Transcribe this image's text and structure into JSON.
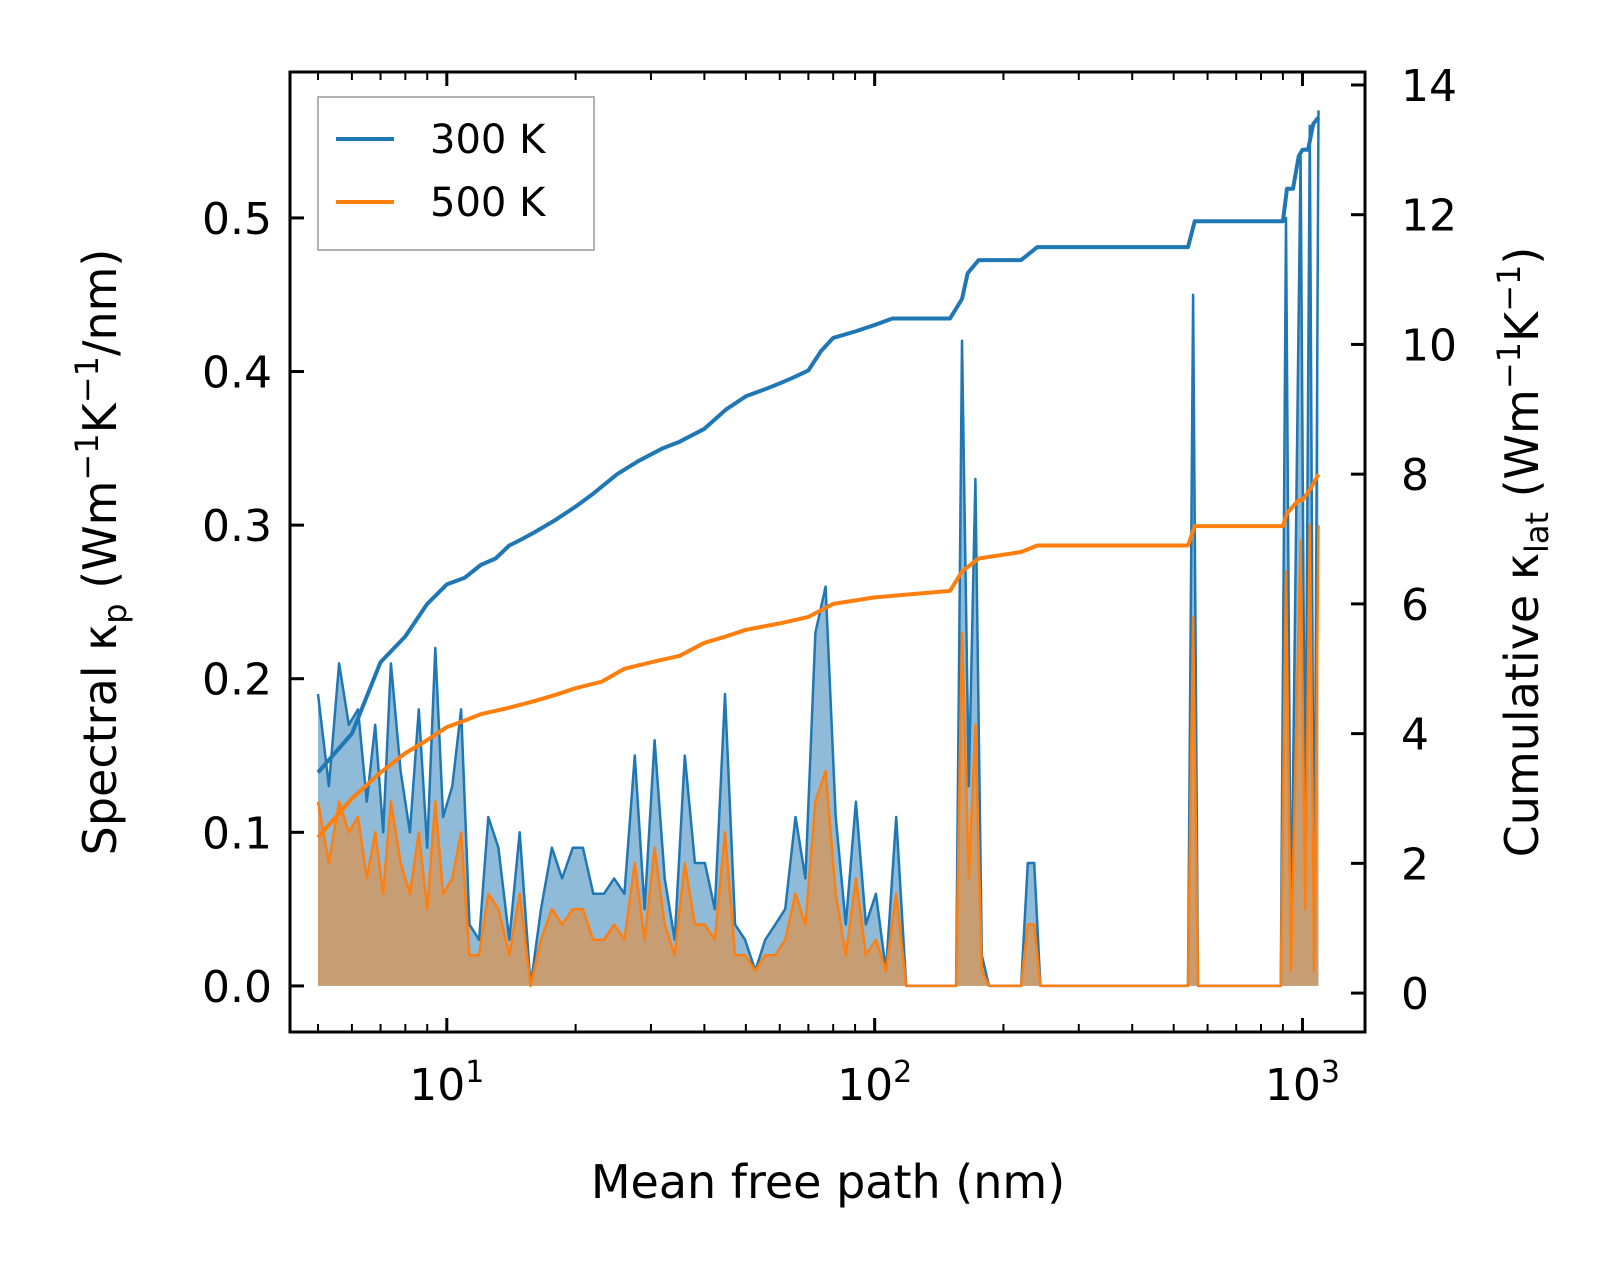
{
  "chart_data": {
    "type": "line",
    "xscale": "log",
    "xlabel": "Mean free path (nm)",
    "ylabel_left": {
      "prefix": "Spectral κ",
      "sub": "p",
      "unit_open": " (Wm",
      "sup1": "−1",
      "mid": "K",
      "sup2": "−1",
      "unit_close": "/nm)"
    },
    "ylabel_right": {
      "prefix": "Cumulative κ",
      "sub": "lat",
      "unit_open": " (Wm",
      "sup1": "−1",
      "mid": "K",
      "sup2": "−1",
      "unit_close": ")"
    },
    "xlim": [
      4.3,
      1400
    ],
    "ylim_left": [
      -0.03,
      0.595
    ],
    "ylim_right": [
      -0.6,
      14.2
    ],
    "xticks": [
      {
        "value": 10,
        "base": "10",
        "exp": "1"
      },
      {
        "value": 100,
        "base": "10",
        "exp": "2"
      },
      {
        "value": 1000,
        "base": "10",
        "exp": "3"
      }
    ],
    "yticks_left": [
      {
        "value": 0.0,
        "label": "0.0"
      },
      {
        "value": 0.1,
        "label": "0.1"
      },
      {
        "value": 0.2,
        "label": "0.2"
      },
      {
        "value": 0.3,
        "label": "0.3"
      },
      {
        "value": 0.4,
        "label": "0.4"
      },
      {
        "value": 0.5,
        "label": "0.5"
      }
    ],
    "yticks_right": [
      {
        "value": 0,
        "label": "0"
      },
      {
        "value": 2,
        "label": "2"
      },
      {
        "value": 4,
        "label": "4"
      },
      {
        "value": 6,
        "label": "6"
      },
      {
        "value": 8,
        "label": "8"
      },
      {
        "value": 10,
        "label": "10"
      },
      {
        "value": 12,
        "label": "12"
      },
      {
        "value": 14,
        "label": "14"
      }
    ],
    "legend": {
      "position": "upper-left",
      "entries": [
        "300 K",
        "500 K"
      ]
    },
    "series": [
      {
        "name": "300 K",
        "color": "#1f77b4",
        "spectral": {
          "x": [
            5,
            5.3,
            5.6,
            5.9,
            6.2,
            6.5,
            6.8,
            7.1,
            7.4,
            7.8,
            8.2,
            8.6,
            9.0,
            9.4,
            9.8,
            10.3,
            10.8,
            11.3,
            11.9,
            12.5,
            13.2,
            14.0,
            14.8,
            15.7,
            16.6,
            17.6,
            18.6,
            19.7,
            20.8,
            22.0,
            23.3,
            24.6,
            26.0,
            27.5,
            29.0,
            30.6,
            32.3,
            34.1,
            36.0,
            38.0,
            40.1,
            42.3,
            44.7,
            47.2,
            49.8,
            52.6,
            55.5,
            58.6,
            61.8,
            65.3,
            68.9,
            72.7,
            76.8,
            81.1,
            85.6,
            90.4,
            95.4,
            100.7,
            106.3,
            112.3,
            118.5,
            155,
            160,
            166,
            172,
            178,
            185,
            220,
            228,
            236,
            244,
            540,
            555,
            570,
            890,
            915,
            940,
            965,
            990,
            1015,
            1040,
            1065,
            1090
          ],
          "y": [
            0.19,
            0.13,
            0.21,
            0.17,
            0.18,
            0.12,
            0.17,
            0.1,
            0.21,
            0.14,
            0.1,
            0.18,
            0.09,
            0.22,
            0.11,
            0.13,
            0.18,
            0.04,
            0.03,
            0.11,
            0.09,
            0.03,
            0.1,
            0.0,
            0.05,
            0.09,
            0.07,
            0.09,
            0.09,
            0.06,
            0.06,
            0.07,
            0.06,
            0.15,
            0.05,
            0.16,
            0.07,
            0.03,
            0.15,
            0.08,
            0.08,
            0.05,
            0.19,
            0.04,
            0.03,
            0.01,
            0.03,
            0.04,
            0.05,
            0.11,
            0.07,
            0.23,
            0.26,
            0.11,
            0.04,
            0.12,
            0.04,
            0.06,
            0.01,
            0.11,
            0.0,
            0.0,
            0.42,
            0.13,
            0.33,
            0.02,
            0.0,
            0.0,
            0.08,
            0.08,
            0.0,
            0.0,
            0.45,
            0.0,
            0.0,
            0.5,
            0.02,
            0.29,
            0.54,
            0.09,
            0.56,
            0.01,
            0.57
          ]
        },
        "cumulative": {
          "x": [
            5,
            6,
            7,
            8,
            9,
            10,
            11,
            12,
            13,
            14,
            15,
            16,
            18,
            20,
            22,
            25,
            28,
            32,
            35,
            40,
            45,
            50,
            55,
            60,
            65,
            70,
            75,
            80,
            90,
            100,
            110,
            120,
            150,
            160,
            165,
            175,
            185,
            220,
            240,
            260,
            300,
            400,
            540,
            560,
            700,
            900,
            920,
            950,
            980,
            1000,
            1030,
            1060,
            1090
          ],
          "y": [
            3.4,
            4.0,
            5.1,
            5.5,
            6.0,
            6.3,
            6.4,
            6.6,
            6.7,
            6.9,
            7.0,
            7.1,
            7.3,
            7.5,
            7.7,
            8.0,
            8.2,
            8.4,
            8.5,
            8.7,
            9.0,
            9.2,
            9.3,
            9.4,
            9.5,
            9.6,
            9.9,
            10.1,
            10.2,
            10.3,
            10.4,
            10.4,
            10.4,
            10.7,
            11.1,
            11.3,
            11.3,
            11.3,
            11.5,
            11.5,
            11.5,
            11.5,
            11.5,
            11.9,
            11.9,
            11.9,
            12.4,
            12.4,
            12.9,
            13.0,
            13.0,
            13.4,
            13.5
          ]
        }
      },
      {
        "name": "500 K",
        "color": "#ff7f0e",
        "spectral": {
          "x": [
            5,
            5.3,
            5.6,
            5.9,
            6.2,
            6.5,
            6.8,
            7.1,
            7.4,
            7.8,
            8.2,
            8.6,
            9.0,
            9.4,
            9.8,
            10.3,
            10.8,
            11.3,
            11.9,
            12.5,
            13.2,
            14.0,
            14.8,
            15.7,
            16.6,
            17.6,
            18.6,
            19.7,
            20.8,
            22.0,
            23.3,
            24.6,
            26.0,
            27.5,
            29.0,
            30.6,
            32.3,
            34.1,
            36.0,
            38.0,
            40.1,
            42.3,
            44.7,
            47.2,
            49.8,
            52.6,
            55.5,
            58.6,
            61.8,
            65.3,
            68.9,
            72.7,
            76.8,
            81.1,
            85.6,
            90.4,
            95.4,
            100.7,
            106.3,
            112.3,
            118.5,
            155,
            160,
            166,
            172,
            178,
            185,
            220,
            228,
            236,
            244,
            540,
            555,
            570,
            890,
            915,
            940,
            965,
            990,
            1015,
            1040,
            1065,
            1090
          ],
          "y": [
            0.12,
            0.08,
            0.12,
            0.1,
            0.11,
            0.07,
            0.1,
            0.06,
            0.12,
            0.08,
            0.06,
            0.1,
            0.05,
            0.12,
            0.06,
            0.07,
            0.1,
            0.02,
            0.02,
            0.06,
            0.05,
            0.02,
            0.06,
            0.0,
            0.03,
            0.05,
            0.04,
            0.05,
            0.05,
            0.03,
            0.03,
            0.04,
            0.03,
            0.08,
            0.03,
            0.09,
            0.04,
            0.02,
            0.08,
            0.04,
            0.04,
            0.03,
            0.1,
            0.02,
            0.02,
            0.01,
            0.02,
            0.02,
            0.03,
            0.06,
            0.04,
            0.12,
            0.14,
            0.06,
            0.02,
            0.07,
            0.02,
            0.03,
            0.01,
            0.06,
            0.0,
            0.0,
            0.23,
            0.07,
            0.17,
            0.01,
            0.0,
            0.0,
            0.04,
            0.04,
            0.0,
            0.0,
            0.24,
            0.0,
            0.0,
            0.27,
            0.01,
            0.16,
            0.29,
            0.05,
            0.3,
            0.01,
            0.3
          ]
        },
        "cumulative": {
          "x": [
            5,
            6,
            7,
            8,
            9,
            10,
            11,
            12,
            14,
            16,
            18,
            20,
            23,
            26,
            30,
            35,
            40,
            45,
            50,
            60,
            70,
            80,
            100,
            150,
            160,
            175,
            220,
            240,
            300,
            540,
            560,
            900,
            920,
            980,
            1000,
            1050,
            1090
          ],
          "y": [
            2.4,
            3.0,
            3.4,
            3.7,
            3.9,
            4.1,
            4.2,
            4.3,
            4.4,
            4.5,
            4.6,
            4.7,
            4.8,
            5.0,
            5.1,
            5.2,
            5.4,
            5.5,
            5.6,
            5.7,
            5.8,
            6.0,
            6.1,
            6.2,
            6.5,
            6.7,
            6.8,
            6.9,
            6.9,
            6.9,
            7.2,
            7.2,
            7.4,
            7.6,
            7.6,
            7.8,
            8.0
          ]
        }
      }
    ]
  }
}
